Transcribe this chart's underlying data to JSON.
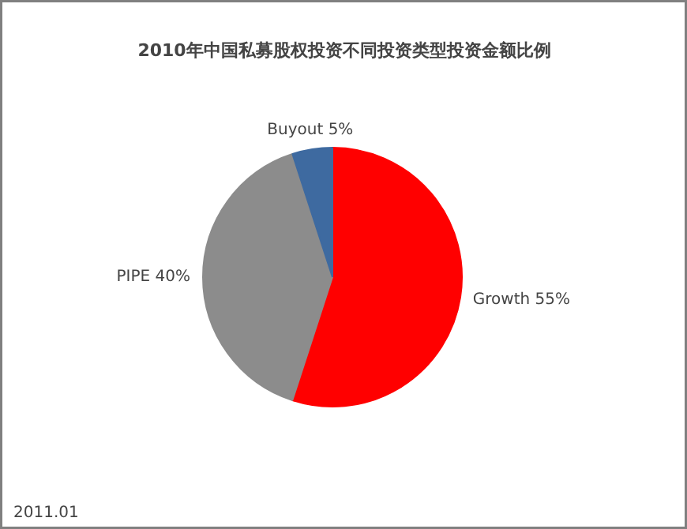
{
  "chart_data": {
    "type": "pie",
    "title": "2010年中国私募股权投资不同投资类型投资金额比例",
    "categories": [
      "Growth",
      "PIPE",
      "Buyout"
    ],
    "values": [
      55,
      40,
      5
    ],
    "colors": [
      "#ff0000",
      "#8c8c8c",
      "#3e6aa0"
    ],
    "value_labels": [
      "55%",
      "40%",
      "5%"
    ],
    "annotations": [
      "2011.01"
    ]
  }
}
